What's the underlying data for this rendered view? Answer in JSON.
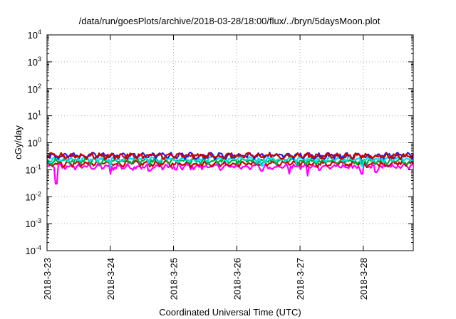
{
  "chart_data": {
    "type": "line",
    "title": "/data/run/goesPlots/archive/2018-03-28/18:00/flux/../bryn/5daysMoon.plot",
    "xlabel": "Coordinated Universal Time (UTC)",
    "ylabel": "cGy/day",
    "yscale": "log",
    "ylim": [
      0.0001,
      10000
    ],
    "xlim": [
      0,
      5.79
    ],
    "grid": true,
    "x_tick_values": [
      0,
      1,
      2,
      3,
      4,
      5
    ],
    "x_tick_labels": [
      "2018-3-23",
      "2018-3-24",
      "2018-3-25",
      "2018-3-26",
      "2018-3-27",
      "2018-3-28"
    ],
    "y_ticks": [
      {
        "value": 0.0001,
        "base": "10",
        "exp": "-4"
      },
      {
        "value": 0.001,
        "base": "10",
        "exp": "-3"
      },
      {
        "value": 0.01,
        "base": "10",
        "exp": "-2"
      },
      {
        "value": 0.1,
        "base": "10",
        "exp": "-1"
      },
      {
        "value": 1,
        "base": "10",
        "exp": "0"
      },
      {
        "value": 10,
        "base": "10",
        "exp": "1"
      },
      {
        "value": 100,
        "base": "10",
        "exp": "2"
      },
      {
        "value": 1000,
        "base": "10",
        "exp": "3"
      },
      {
        "value": 10000,
        "base": "10",
        "exp": "4"
      }
    ],
    "series": [
      {
        "color": "#ff00ff",
        "base": 0.13,
        "dips": [
          [
            0.15,
            0.03
          ],
          [
            1.0,
            0.07
          ],
          [
            1.62,
            0.09
          ],
          [
            2.04,
            0.1
          ],
          [
            3.4,
            0.09
          ],
          [
            3.83,
            0.07
          ],
          [
            4.12,
            0.06
          ],
          [
            4.98,
            0.07
          ],
          [
            5.2,
            0.08
          ]
        ]
      },
      {
        "color": "#cc0000",
        "base": 0.17,
        "dips": []
      },
      {
        "color": "#00aa44",
        "base": 0.21,
        "dips": []
      },
      {
        "color": "#00e0e0",
        "base": 0.25,
        "dips": [
          [
            1.0,
            0.13
          ],
          [
            3.4,
            0.14
          ],
          [
            4.98,
            0.14
          ]
        ]
      },
      {
        "color": "#2222dd",
        "base": 0.34,
        "dips": []
      },
      {
        "color": "#cc0000",
        "base": 0.33,
        "dips": []
      }
    ]
  }
}
